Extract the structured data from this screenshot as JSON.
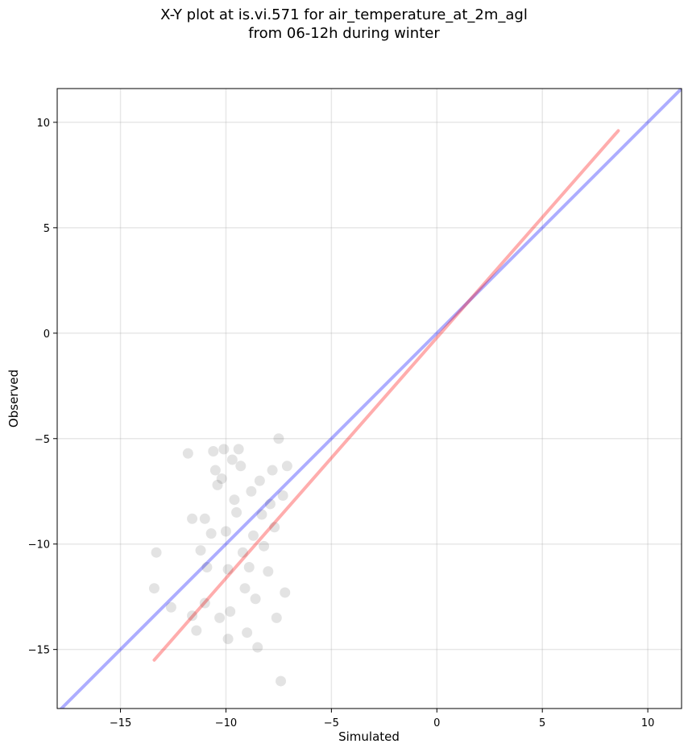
{
  "title_line1": "X-Y plot at is.vi.571 for air_temperature_at_2m_agl",
  "title_line2": "from 06-12h during winter",
  "chart_data": {
    "type": "scatter",
    "title": "X-Y plot at is.vi.571 for air_temperature_at_2m_agl from 06-12h during winter",
    "xlabel": "Simulated",
    "ylabel": "Observed",
    "xlim": [
      -18,
      11.6
    ],
    "ylim": [
      -17.8,
      11.6
    ],
    "xticks": [
      -15,
      -10,
      -5,
      0,
      5,
      10
    ],
    "yticks": [
      -15,
      -10,
      -5,
      0,
      5,
      10
    ],
    "xtick_labels": [
      "−15",
      "−10",
      "−5",
      "0",
      "5",
      "10"
    ],
    "ytick_labels": [
      "−15",
      "−10",
      "−5",
      "0",
      "5",
      "10"
    ],
    "grid": true,
    "lines": [
      {
        "role": "one-to-one",
        "color": "#0000ff",
        "opacity": 0.32,
        "x": [
          -18,
          11.6
        ],
        "y": [
          -18,
          11.6
        ]
      },
      {
        "role": "fit",
        "color": "#ff0000",
        "opacity": 0.32,
        "x": [
          -13.4,
          8.6
        ],
        "y": [
          -15.5,
          9.6
        ]
      }
    ],
    "point_color": "#000000",
    "point_opacity": 0.11,
    "points": [
      [
        -13.4,
        -12.1
      ],
      [
        -13.3,
        -10.4
      ],
      [
        -12.6,
        -13.0
      ],
      [
        -11.6,
        -8.8
      ],
      [
        -11.6,
        -13.4
      ],
      [
        -11.4,
        -14.1
      ],
      [
        -11.0,
        -8.8
      ],
      [
        -11.0,
        -12.8
      ],
      [
        -10.9,
        -11.1
      ],
      [
        -10.7,
        -9.5
      ],
      [
        -10.6,
        -5.6
      ],
      [
        -10.5,
        -6.5
      ],
      [
        -10.4,
        -7.2
      ],
      [
        -10.2,
        -6.9
      ],
      [
        -10.1,
        -5.5
      ],
      [
        -10.0,
        -9.4
      ],
      [
        -9.9,
        -11.2
      ],
      [
        -9.9,
        -14.5
      ],
      [
        -9.8,
        -13.2
      ],
      [
        -9.6,
        -7.9
      ],
      [
        -9.5,
        -8.5
      ],
      [
        -9.4,
        -5.5
      ],
      [
        -9.3,
        -6.3
      ],
      [
        -9.2,
        -10.4
      ],
      [
        -9.1,
        -12.1
      ],
      [
        -9.0,
        -14.2
      ],
      [
        -8.9,
        -11.1
      ],
      [
        -8.8,
        -7.5
      ],
      [
        -8.7,
        -9.6
      ],
      [
        -8.5,
        -14.9
      ],
      [
        -8.4,
        -7.0
      ],
      [
        -8.3,
        -8.6
      ],
      [
        -8.0,
        -11.3
      ],
      [
        -7.8,
        -6.5
      ],
      [
        -7.7,
        -9.2
      ],
      [
        -7.6,
        -13.5
      ],
      [
        -7.5,
        -5.0
      ],
      [
        -7.4,
        -16.5
      ],
      [
        -7.3,
        -7.7
      ],
      [
        -7.2,
        -12.3
      ],
      [
        -11.8,
        -5.7
      ],
      [
        -11.2,
        -10.3
      ],
      [
        -10.3,
        -13.5
      ],
      [
        -9.7,
        -6.0
      ],
      [
        -8.6,
        -12.6
      ],
      [
        -8.2,
        -10.1
      ],
      [
        -7.9,
        -8.1
      ],
      [
        -7.1,
        -6.3
      ]
    ]
  }
}
